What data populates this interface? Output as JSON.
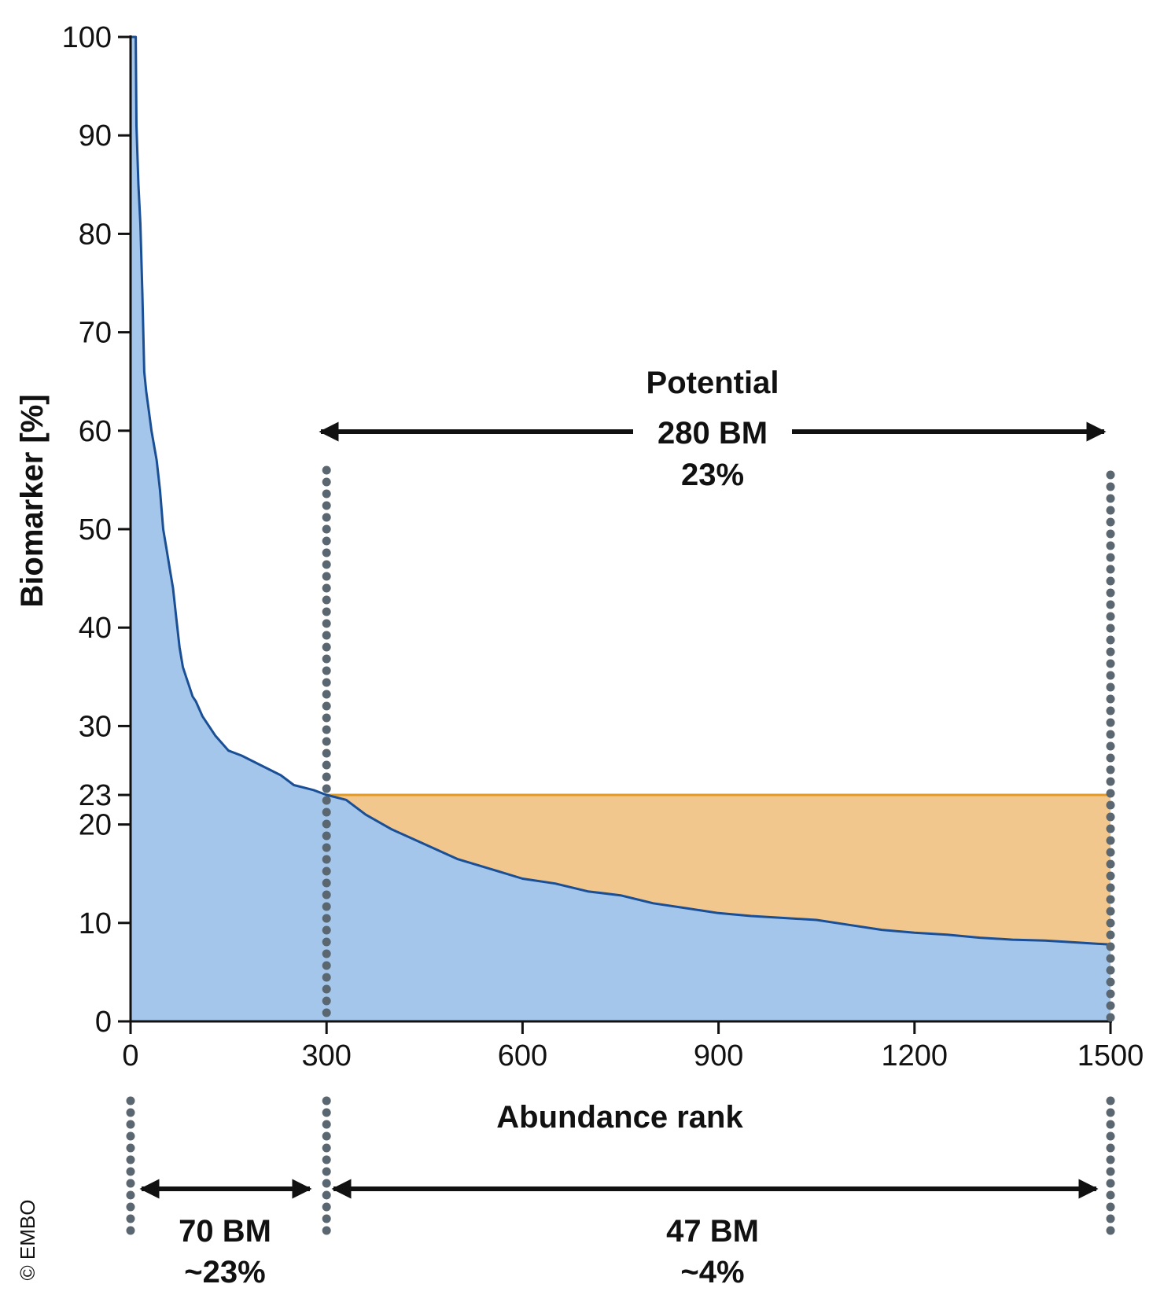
{
  "chart_data": {
    "type": "area",
    "xlabel": "Abundance rank",
    "ylabel": "Biomarker [%]",
    "xlim": [
      0,
      1500
    ],
    "ylim": [
      0,
      100
    ],
    "x_ticks": [
      "0",
      "300",
      "600",
      "900",
      "1200",
      "1500"
    ],
    "y_ticks": [
      "0",
      "10",
      "20",
      "23",
      "30",
      "40",
      "50",
      "60",
      "70",
      "80",
      "90",
      "100"
    ],
    "grid": false,
    "series": [
      {
        "values": [
          [
            0,
            100
          ],
          [
            8,
            100
          ],
          [
            9,
            91
          ],
          [
            12,
            85
          ],
          [
            15,
            81
          ],
          [
            18,
            74
          ],
          [
            21,
            66
          ],
          [
            24,
            64
          ],
          [
            28,
            62
          ],
          [
            32,
            60
          ],
          [
            40,
            57
          ],
          [
            45,
            54
          ],
          [
            50,
            50
          ],
          [
            55,
            48
          ],
          [
            60,
            46
          ],
          [
            65,
            44
          ],
          [
            70,
            41
          ],
          [
            75,
            38
          ],
          [
            80,
            36
          ],
          [
            85,
            35
          ],
          [
            90,
            34
          ],
          [
            95,
            33
          ],
          [
            100,
            32.5
          ],
          [
            110,
            31
          ],
          [
            120,
            30
          ],
          [
            130,
            29
          ],
          [
            150,
            27.5
          ],
          [
            170,
            27
          ],
          [
            200,
            26
          ],
          [
            230,
            25
          ],
          [
            250,
            24
          ],
          [
            280,
            23.5
          ],
          [
            300,
            23
          ],
          [
            330,
            22.5
          ],
          [
            360,
            21
          ],
          [
            400,
            19.5
          ],
          [
            450,
            18
          ],
          [
            500,
            16.5
          ],
          [
            550,
            15.5
          ],
          [
            600,
            14.5
          ],
          [
            650,
            14
          ],
          [
            700,
            13.2
          ],
          [
            750,
            12.8
          ],
          [
            800,
            12
          ],
          [
            850,
            11.5
          ],
          [
            900,
            11
          ],
          [
            950,
            10.7
          ],
          [
            1000,
            10.5
          ],
          [
            1050,
            10.3
          ],
          [
            1100,
            9.8
          ],
          [
            1150,
            9.3
          ],
          [
            1200,
            9
          ],
          [
            1250,
            8.8
          ],
          [
            1300,
            8.5
          ],
          [
            1350,
            8.3
          ],
          [
            1400,
            8.2
          ],
          [
            1450,
            8
          ],
          [
            1500,
            7.8
          ]
        ],
        "color": "#1a4f96",
        "fill": "#a4c6ea"
      }
    ],
    "potential_level": 23,
    "potential_fill": "#f2c78e",
    "potential_line_color": "#e39a25",
    "divider_color": "#5a6670",
    "dividers_x": [
      0,
      300,
      1500
    ],
    "annotations": {
      "potential_title": "Potential",
      "potential_count": "280 BM",
      "potential_percent": "23%",
      "left_count": "70 BM",
      "left_percent": "~23%",
      "right_count": "47 BM",
      "right_percent": "~4%"
    }
  },
  "copyright": "© EMBO"
}
